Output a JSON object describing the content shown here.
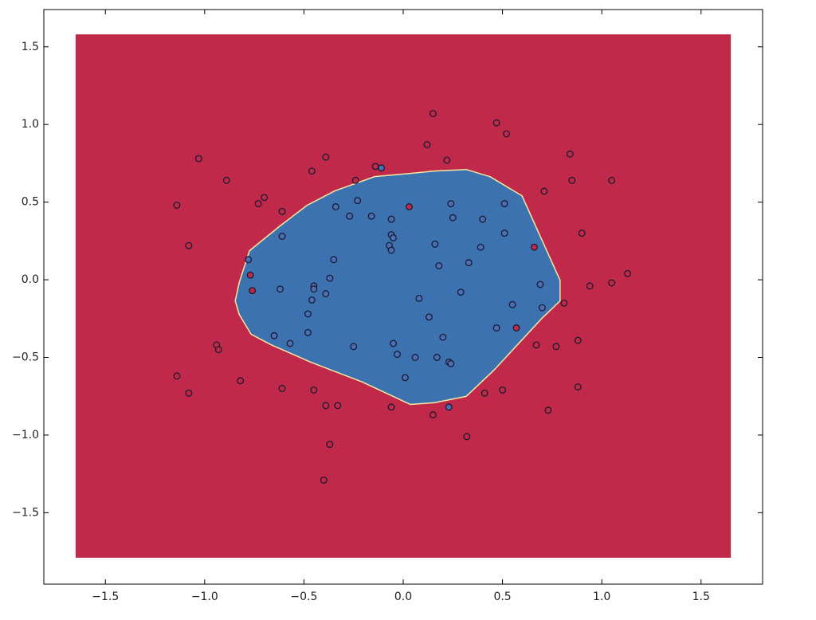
{
  "chart_data": {
    "type": "scatter",
    "xlim": [
      -1.81,
      1.81
    ],
    "ylim": [
      -1.96,
      1.74
    ],
    "xticks": [
      {
        "value": -1.5,
        "label": "−1.5"
      },
      {
        "value": -1.0,
        "label": "−1.0"
      },
      {
        "value": -0.5,
        "label": "−0.5"
      },
      {
        "value": 0.0,
        "label": "0.0"
      },
      0.5,
      {
        "value": 1.0,
        "label": "1.0"
      },
      1.5
    ],
    "yticks": [
      {
        "value": -1.5,
        "label": "−1.5"
      },
      {
        "value": -1.0,
        "label": "−1.0"
      },
      {
        "value": -0.5,
        "label": "−0.5"
      },
      {
        "value": 0.0,
        "label": "0.0"
      },
      0.5,
      {
        "value": 1.0,
        "label": "1.0"
      },
      1.5
    ],
    "regions": [
      {
        "color": "#c1294a",
        "x": [
          -1.65,
          1.65,
          1.65,
          -1.65
        ],
        "y": [
          1.58,
          1.58,
          -1.79,
          -1.79
        ]
      },
      {
        "color": "#3d72b0",
        "x": [
          0.156,
          0.317,
          0.437,
          0.598,
          0.79,
          0.79,
          0.698,
          0.457,
          0.317,
          0.156,
          0.036,
          -0.205,
          -0.465,
          -0.666,
          -0.766,
          -0.826,
          -0.846,
          -0.826,
          -0.774,
          -0.626,
          -0.485,
          -0.345,
          -0.144,
          0.036
        ],
        "y": [
          0.7,
          0.71,
          0.664,
          0.541,
          -0.003,
          -0.136,
          -0.249,
          -0.582,
          -0.751,
          -0.792,
          -0.803,
          -0.659,
          -0.531,
          -0.418,
          -0.351,
          -0.223,
          -0.136,
          -0.018,
          0.187,
          0.341,
          0.479,
          0.572,
          0.664,
          0.685
        ]
      }
    ],
    "series": [
      {
        "color": "#c1294a",
        "x": [
          -1.03,
          -1.14,
          -1.08,
          -0.89,
          -0.7,
          -0.73,
          -0.61,
          -0.46,
          -0.39,
          -0.24,
          -0.14,
          0.15,
          0.12,
          0.22,
          0.47,
          0.52,
          0.84,
          0.85,
          1.05,
          0.71,
          0.9,
          0.94,
          1.05,
          1.13,
          0.81,
          0.67,
          0.77,
          0.88,
          0.88,
          0.73,
          0.5,
          0.41,
          0.32,
          0.15,
          -0.06,
          -0.33,
          -0.39,
          -0.45,
          -0.61,
          -0.82,
          -1.14,
          -1.08,
          -0.94,
          -0.93,
          -0.37,
          -0.4,
          0.03,
          0.57,
          -0.77,
          -0.76,
          0.66
        ],
        "values": [
          0.78,
          0.48,
          0.22,
          0.64,
          0.53,
          0.49,
          0.44,
          0.7,
          0.79,
          0.64,
          0.73,
          1.07,
          0.87,
          0.77,
          1.01,
          0.94,
          0.81,
          0.64,
          0.64,
          0.57,
          0.3,
          -0.04,
          -0.02,
          0.04,
          -0.15,
          -0.42,
          -0.43,
          -0.39,
          -0.69,
          -0.84,
          -0.71,
          -0.73,
          -1.01,
          -0.87,
          -0.82,
          -0.81,
          -0.81,
          -0.71,
          -0.7,
          -0.65,
          -0.62,
          -0.73,
          -0.42,
          -0.45,
          -1.06,
          -1.29,
          0.47,
          -0.31,
          0.03,
          -0.07,
          0.21
        ]
      },
      {
        "color": "#4a6fb5",
        "x": [
          -0.11,
          -0.78,
          -0.61,
          -0.34,
          -0.27,
          -0.23,
          -0.16,
          -0.06,
          -0.06,
          -0.05,
          -0.07,
          -0.06,
          -0.35,
          -0.37,
          -0.45,
          -0.45,
          -0.62,
          -0.46,
          -0.39,
          -0.48,
          -0.48,
          -0.57,
          -0.65,
          -0.25,
          -0.05,
          -0.03,
          0.06,
          0.01,
          0.08,
          0.13,
          0.18,
          0.16,
          0.24,
          0.25,
          0.29,
          0.33,
          0.39,
          0.4,
          0.51,
          0.51,
          0.69,
          0.7,
          0.55,
          0.47,
          0.2,
          0.17,
          0.23,
          0.24,
          0.23
        ],
        "values": [
          0.72,
          0.13,
          0.28,
          0.47,
          0.41,
          0.51,
          0.41,
          0.39,
          0.29,
          0.27,
          0.22,
          0.19,
          0.13,
          0.01,
          -0.04,
          -0.06,
          -0.06,
          -0.13,
          -0.09,
          -0.22,
          -0.34,
          -0.41,
          -0.36,
          -0.43,
          -0.41,
          -0.48,
          -0.5,
          -0.63,
          -0.12,
          -0.24,
          0.09,
          0.23,
          0.49,
          0.4,
          -0.08,
          0.11,
          0.21,
          0.39,
          0.49,
          0.3,
          -0.03,
          -0.18,
          -0.16,
          -0.31,
          -0.37,
          -0.5,
          -0.53,
          -0.54,
          -0.82
        ]
      }
    ]
  }
}
